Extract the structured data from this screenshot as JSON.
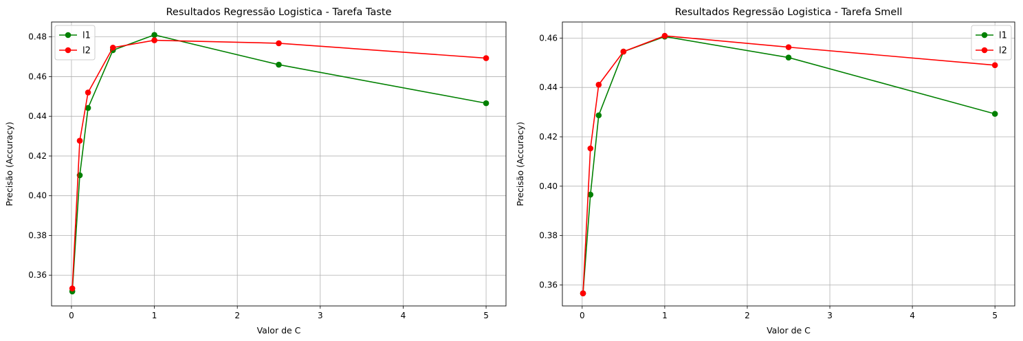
{
  "chart_data": [
    {
      "type": "line",
      "title": "Resultados Regressão Logistica - Tarefa Taste",
      "xlabel": "Valor de C",
      "ylabel": "Precisão (Accuracy)",
      "x": [
        0.01,
        0.1,
        0.2,
        0.5,
        1,
        2.5,
        5
      ],
      "xlim": [
        -0.24,
        5.24
      ],
      "ylim": [
        0.3445,
        0.4875
      ],
      "xticks": [
        "0",
        "1",
        "2",
        "3",
        "4",
        "5"
      ],
      "yticks": [
        "0.36",
        "0.38",
        "0.40",
        "0.42",
        "0.44",
        "0.46",
        "0.48"
      ],
      "grid": true,
      "legend_position": "upper left",
      "series": [
        {
          "name": "l1",
          "color": "#008000",
          "values": [
            0.3518,
            0.4103,
            0.4442,
            0.4733,
            0.481,
            0.466,
            0.4466
          ]
        },
        {
          "name": "l2",
          "color": "#ff0000",
          "values": [
            0.3533,
            0.4277,
            0.452,
            0.4746,
            0.4783,
            0.4768,
            0.4693
          ]
        }
      ]
    },
    {
      "type": "line",
      "title": "Resultados Regressão Logistica - Tarefa Smell",
      "xlabel": "Valor de C",
      "ylabel": "Precisão (Accuracy)",
      "x": [
        0.01,
        0.1,
        0.2,
        0.5,
        1,
        2.5,
        5
      ],
      "xlim": [
        -0.24,
        5.24
      ],
      "ylim": [
        0.3515,
        0.4665
      ],
      "xticks": [
        "0",
        "1",
        "2",
        "3",
        "4",
        "5"
      ],
      "yticks": [
        "0.36",
        "0.38",
        "0.40",
        "0.42",
        "0.44",
        "0.46"
      ],
      "grid": true,
      "legend_position": "upper right",
      "series": [
        {
          "name": "l1",
          "color": "#008000",
          "values": [
            0.3566,
            0.3966,
            0.4287,
            0.4545,
            0.4606,
            0.4521,
            0.4293
          ]
        },
        {
          "name": "l2",
          "color": "#ff0000",
          "values": [
            0.3566,
            0.4153,
            0.4411,
            0.4545,
            0.4609,
            0.4563,
            0.449
          ]
        }
      ]
    }
  ]
}
